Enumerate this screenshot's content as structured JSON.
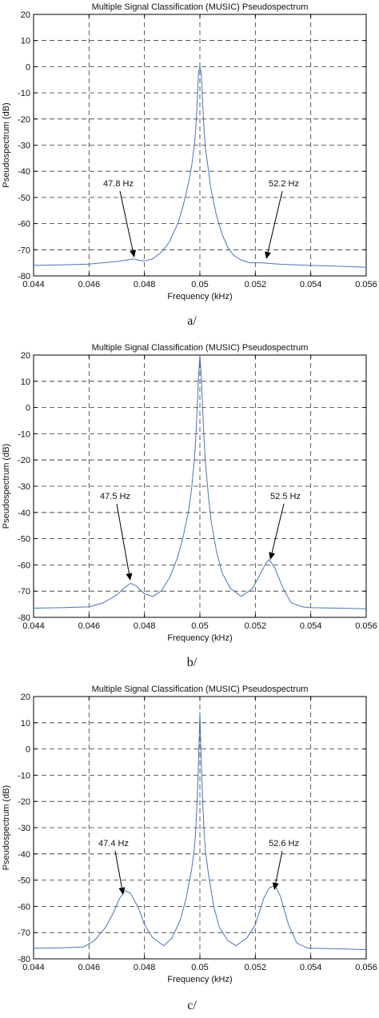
{
  "chart_data": [
    {
      "type": "line",
      "title": "Multiple Signal Classification (MUSIC) Pseudospectrum",
      "xlabel": "Frequency (kHz)",
      "ylabel": "Pseudospectrum (dB)",
      "caption": "a/",
      "xlim": [
        0.044,
        0.056
      ],
      "ylim": [
        -80,
        20
      ],
      "x_ticks": [
        "0.044",
        "0.046",
        "0.048",
        "0.05",
        "0.052",
        "0.054",
        "0.056"
      ],
      "y_ticks": [
        "20",
        "10",
        "0",
        "-10",
        "-20",
        "-30",
        "-40",
        "-50",
        "-60",
        "-70",
        "-80"
      ],
      "grid": true,
      "series": [
        {
          "x": [
            0.044,
            0.045,
            0.046,
            0.0465,
            0.047,
            0.0473,
            0.0476,
            0.0478,
            0.048,
            0.0483,
            0.0486,
            0.0489,
            0.0492,
            0.0494,
            0.0496,
            0.0497,
            0.0498,
            0.04985,
            0.0499,
            0.04995,
            0.05,
            0.05005,
            0.0501,
            0.05015,
            0.0502,
            0.0503,
            0.0504,
            0.0506,
            0.0508,
            0.051,
            0.0512,
            0.0515,
            0.0518,
            0.0522,
            0.0526,
            0.053,
            0.054,
            0.055,
            0.056
          ],
          "y": [
            -76,
            -75.8,
            -75.5,
            -75,
            -74.5,
            -74,
            -73.5,
            -74,
            -74.3,
            -73.5,
            -71,
            -67,
            -60,
            -53,
            -44,
            -38,
            -30,
            -24,
            -14,
            -2,
            0,
            -2,
            -14,
            -24,
            -31,
            -39,
            -47,
            -57,
            -64,
            -69,
            -72,
            -74,
            -75,
            -75,
            -75.3,
            -75.6,
            -76,
            -76.3,
            -76.7
          ]
        }
      ],
      "annotations": [
        {
          "text": "47.8 Hz",
          "x": 0.0478,
          "y": -74
        },
        {
          "text": "52.2 Hz",
          "x": 0.0522,
          "y": -75
        }
      ]
    },
    {
      "type": "line",
      "title": "Multiple Signal Classification (MUSIC) Pseudospectrum",
      "xlabel": "Frequency (kHz)",
      "ylabel": "Pseudospectrum (dB)",
      "caption": "b/",
      "xlim": [
        0.044,
        0.056
      ],
      "ylim": [
        -80,
        20
      ],
      "x_ticks": [
        "0.044",
        "0.046",
        "0.048",
        "0.05",
        "0.052",
        "0.054",
        "0.056"
      ],
      "y_ticks": [
        "20",
        "10",
        "0",
        "-10",
        "-20",
        "-30",
        "-40",
        "-50",
        "-60",
        "-70",
        "-80"
      ],
      "grid": true,
      "series": [
        {
          "x": [
            0.044,
            0.045,
            0.046,
            0.0465,
            0.047,
            0.0473,
            0.0475,
            0.0477,
            0.048,
            0.0483,
            0.0486,
            0.0489,
            0.0492,
            0.0494,
            0.0496,
            0.0497,
            0.0498,
            0.04985,
            0.0499,
            0.04995,
            0.05,
            0.05005,
            0.0501,
            0.05015,
            0.0502,
            0.0503,
            0.0504,
            0.0506,
            0.0508,
            0.0511,
            0.0515,
            0.0519,
            0.0522,
            0.0524,
            0.0525,
            0.0527,
            0.053,
            0.0533,
            0.0537,
            0.054,
            0.055,
            0.056
          ],
          "y": [
            -76.5,
            -76.3,
            -76,
            -74.5,
            -71.5,
            -68.5,
            -67,
            -68,
            -71,
            -72,
            -70,
            -65,
            -57,
            -49,
            -39,
            -31,
            -20,
            -12,
            -1,
            12,
            20,
            12,
            -1,
            -12,
            -21,
            -33,
            -43,
            -55,
            -63,
            -69,
            -72,
            -69,
            -63,
            -59,
            -58,
            -61,
            -69,
            -74.5,
            -76,
            -76.3,
            -76.5,
            -76.7
          ]
        }
      ],
      "annotations": [
        {
          "text": "47.5 Hz",
          "x": 0.0475,
          "y": -67
        },
        {
          "text": "52.5 Hz",
          "x": 0.0525,
          "y": -58
        }
      ]
    },
    {
      "type": "line",
      "title": "Multiple Signal Classification (MUSIC) Pseudospectrum",
      "xlabel": "Frequency (kHz)",
      "ylabel": "Pseudospectrum (dB)",
      "caption": "c/",
      "xlim": [
        0.044,
        0.056
      ],
      "ylim": [
        -80,
        20
      ],
      "x_ticks": [
        "0.044",
        "0.046",
        "0.048",
        "0.05",
        "0.052",
        "0.054",
        "0.056"
      ],
      "y_ticks": [
        "20",
        "10",
        "0",
        "-10",
        "-20",
        "-30",
        "-40",
        "-50",
        "-60",
        "-70",
        "-80"
      ],
      "grid": true,
      "series": [
        {
          "x": [
            0.044,
            0.045,
            0.0458,
            0.0462,
            0.0466,
            0.0469,
            0.0471,
            0.0473,
            0.0475,
            0.0478,
            0.048,
            0.0483,
            0.0487,
            0.049,
            0.0493,
            0.0495,
            0.0497,
            0.0498,
            0.04985,
            0.0499,
            0.04995,
            0.05,
            0.05005,
            0.0501,
            0.05015,
            0.0502,
            0.0503,
            0.0505,
            0.0507,
            0.051,
            0.0513,
            0.0517,
            0.052,
            0.0523,
            0.0525,
            0.0527,
            0.0529,
            0.0532,
            0.0535,
            0.0539,
            0.0542,
            0.055,
            0.056
          ],
          "y": [
            -76,
            -75.8,
            -75.5,
            -73,
            -68,
            -62,
            -57,
            -54,
            -55,
            -61,
            -67,
            -72,
            -75,
            -72,
            -65,
            -57,
            -46,
            -38,
            -31,
            -20,
            -5,
            14,
            -5,
            -20,
            -31,
            -39,
            -47,
            -60,
            -68,
            -73,
            -75,
            -72,
            -67,
            -57,
            -53,
            -52,
            -56,
            -67,
            -74,
            -76,
            -76,
            -76.2,
            -76.5
          ]
        }
      ],
      "annotations": [
        {
          "text": "47.4 Hz",
          "x": 0.0473,
          "y": -54
        },
        {
          "text": "52.6 Hz",
          "x": 0.0526,
          "y": -52
        }
      ]
    }
  ]
}
